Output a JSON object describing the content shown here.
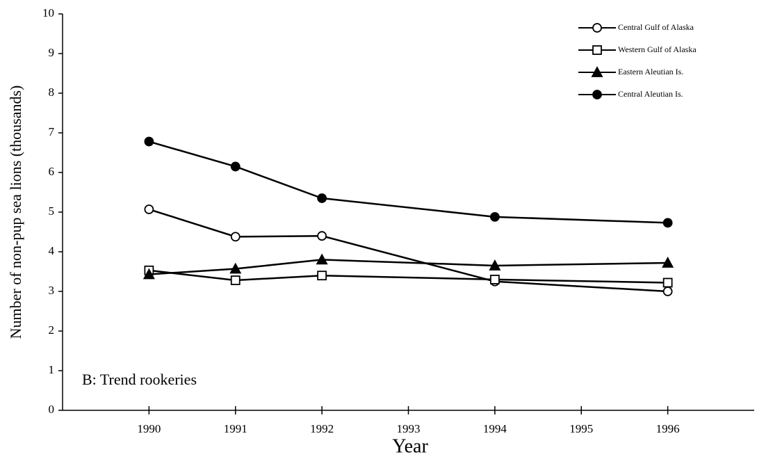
{
  "chart_data": {
    "type": "line",
    "y_label": "Number of non-pup sea lions (thousands)",
    "x_label": "Year",
    "annotation": "B:  Trend rookeries",
    "x": [
      1990,
      1991,
      1992,
      1994,
      1996
    ],
    "series": [
      {
        "name": "Central Gulf of Alaska",
        "color": "#000000",
        "marker": "circle-open",
        "values": [
          5.07,
          4.38,
          4.4,
          3.25,
          3.0
        ]
      },
      {
        "name": "Western Gulf of Alaska",
        "color": "#000000",
        "marker": "square-open",
        "values": [
          3.53,
          3.28,
          3.4,
          3.3,
          3.22
        ]
      },
      {
        "name": "Eastern Aleutian Is.",
        "color": "#000000",
        "marker": "triangle-filled",
        "values": [
          3.43,
          3.57,
          3.8,
          3.65,
          3.72
        ]
      },
      {
        "name": "Central Aleutian Is.",
        "color": "#000000",
        "marker": "circle-filled",
        "values": [
          6.78,
          6.15,
          5.35,
          4.88,
          4.73
        ]
      }
    ],
    "xlim": [
      1989,
      1997
    ],
    "xticks": [
      1990,
      1991,
      1992,
      1993,
      1994,
      1995,
      1996
    ],
    "ylim": [
      0,
      10
    ],
    "yticks": [
      0,
      1,
      2,
      3,
      4,
      5,
      6,
      7,
      8,
      9,
      10
    ],
    "legend": "upper right",
    "grid": false
  }
}
